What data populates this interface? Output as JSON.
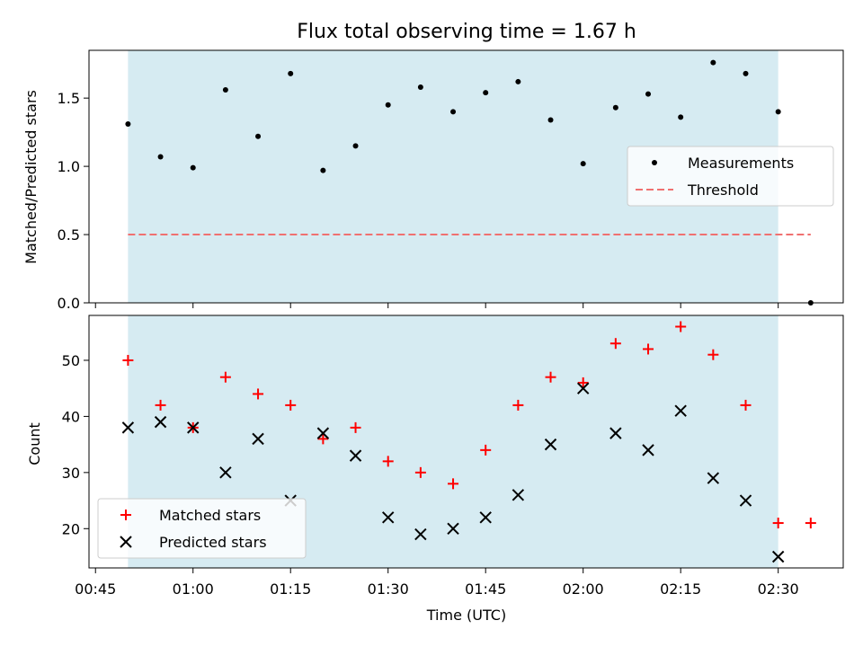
{
  "chart_data": {
    "type": "scatter",
    "title": "Flux total observing time = 1.67 h",
    "xlabel": "Time (UTC)",
    "x_tick_labels": [
      "00:45",
      "01:00",
      "01:15",
      "01:30",
      "01:45",
      "02:00",
      "02:15",
      "02:30"
    ],
    "x_ticks": [
      "00:45",
      "01:00",
      "01:15",
      "01:30",
      "01:45",
      "02:00",
      "02:15",
      "02:30"
    ],
    "xlim": [
      "00:44",
      "02:40"
    ],
    "shaded_region": {
      "start": "00:50",
      "end": "02:30",
      "color": "#add8e6"
    },
    "panels": [
      {
        "id": "ratio",
        "ylabel": "Matched/Predicted stars",
        "ylim": [
          0.0,
          1.85
        ],
        "y_ticks": [
          0.0,
          0.5,
          1.0,
          1.5
        ],
        "y_tick_labels": [
          "0.0",
          "0.5",
          "1.0",
          "1.5"
        ],
        "series": [
          {
            "name": "Measurements",
            "marker": "dot",
            "color": "#000000",
            "x": [
              "00:50",
              "00:55",
              "01:00",
              "01:05",
              "01:10",
              "01:15",
              "01:20",
              "01:25",
              "01:30",
              "01:35",
              "01:40",
              "01:45",
              "01:50",
              "01:55",
              "02:00",
              "02:05",
              "02:10",
              "02:15",
              "02:20",
              "02:25",
              "02:30",
              "02:35"
            ],
            "y": [
              1.31,
              1.07,
              0.99,
              1.56,
              1.22,
              1.68,
              0.97,
              1.15,
              1.45,
              1.58,
              1.4,
              1.54,
              1.62,
              1.34,
              1.02,
              1.43,
              1.53,
              1.36,
              1.76,
              1.68,
              1.4,
              0.0
            ]
          },
          {
            "name": "Threshold",
            "marker": "dashed-line",
            "color": "#f07070",
            "x": [
              "00:50",
              "02:35"
            ],
            "y": [
              0.5,
              0.5
            ]
          }
        ],
        "legend_position": "center-right"
      },
      {
        "id": "counts",
        "ylabel": "Count",
        "ylim": [
          13,
          58
        ],
        "y_ticks": [
          20,
          30,
          40,
          50
        ],
        "y_tick_labels": [
          "20",
          "30",
          "40",
          "50"
        ],
        "series": [
          {
            "name": "Matched stars",
            "marker": "plus",
            "color": "#ff0000",
            "x": [
              "00:50",
              "00:55",
              "01:00",
              "01:05",
              "01:10",
              "01:15",
              "01:20",
              "01:25",
              "01:30",
              "01:35",
              "01:40",
              "01:45",
              "01:50",
              "01:55",
              "02:00",
              "02:05",
              "02:10",
              "02:15",
              "02:20",
              "02:25",
              "02:30",
              "02:35"
            ],
            "y": [
              50,
              42,
              38,
              47,
              44,
              42,
              36,
              38,
              32,
              30,
              28,
              34,
              42,
              47,
              46,
              53,
              52,
              56,
              51,
              42,
              21,
              21
            ]
          },
          {
            "name": "Predicted stars",
            "marker": "x",
            "color": "#000000",
            "x": [
              "00:50",
              "00:55",
              "01:00",
              "01:05",
              "01:10",
              "01:15",
              "01:20",
              "01:25",
              "01:30",
              "01:35",
              "01:40",
              "01:45",
              "01:50",
              "01:55",
              "02:00",
              "02:05",
              "02:10",
              "02:15",
              "02:20",
              "02:25",
              "02:30"
            ],
            "y": [
              38,
              39,
              38,
              30,
              36,
              25,
              37,
              33,
              22,
              19,
              20,
              22,
              26,
              35,
              45,
              37,
              34,
              41,
              29,
              25,
              15
            ]
          }
        ],
        "legend_position": "lower-left"
      }
    ]
  }
}
